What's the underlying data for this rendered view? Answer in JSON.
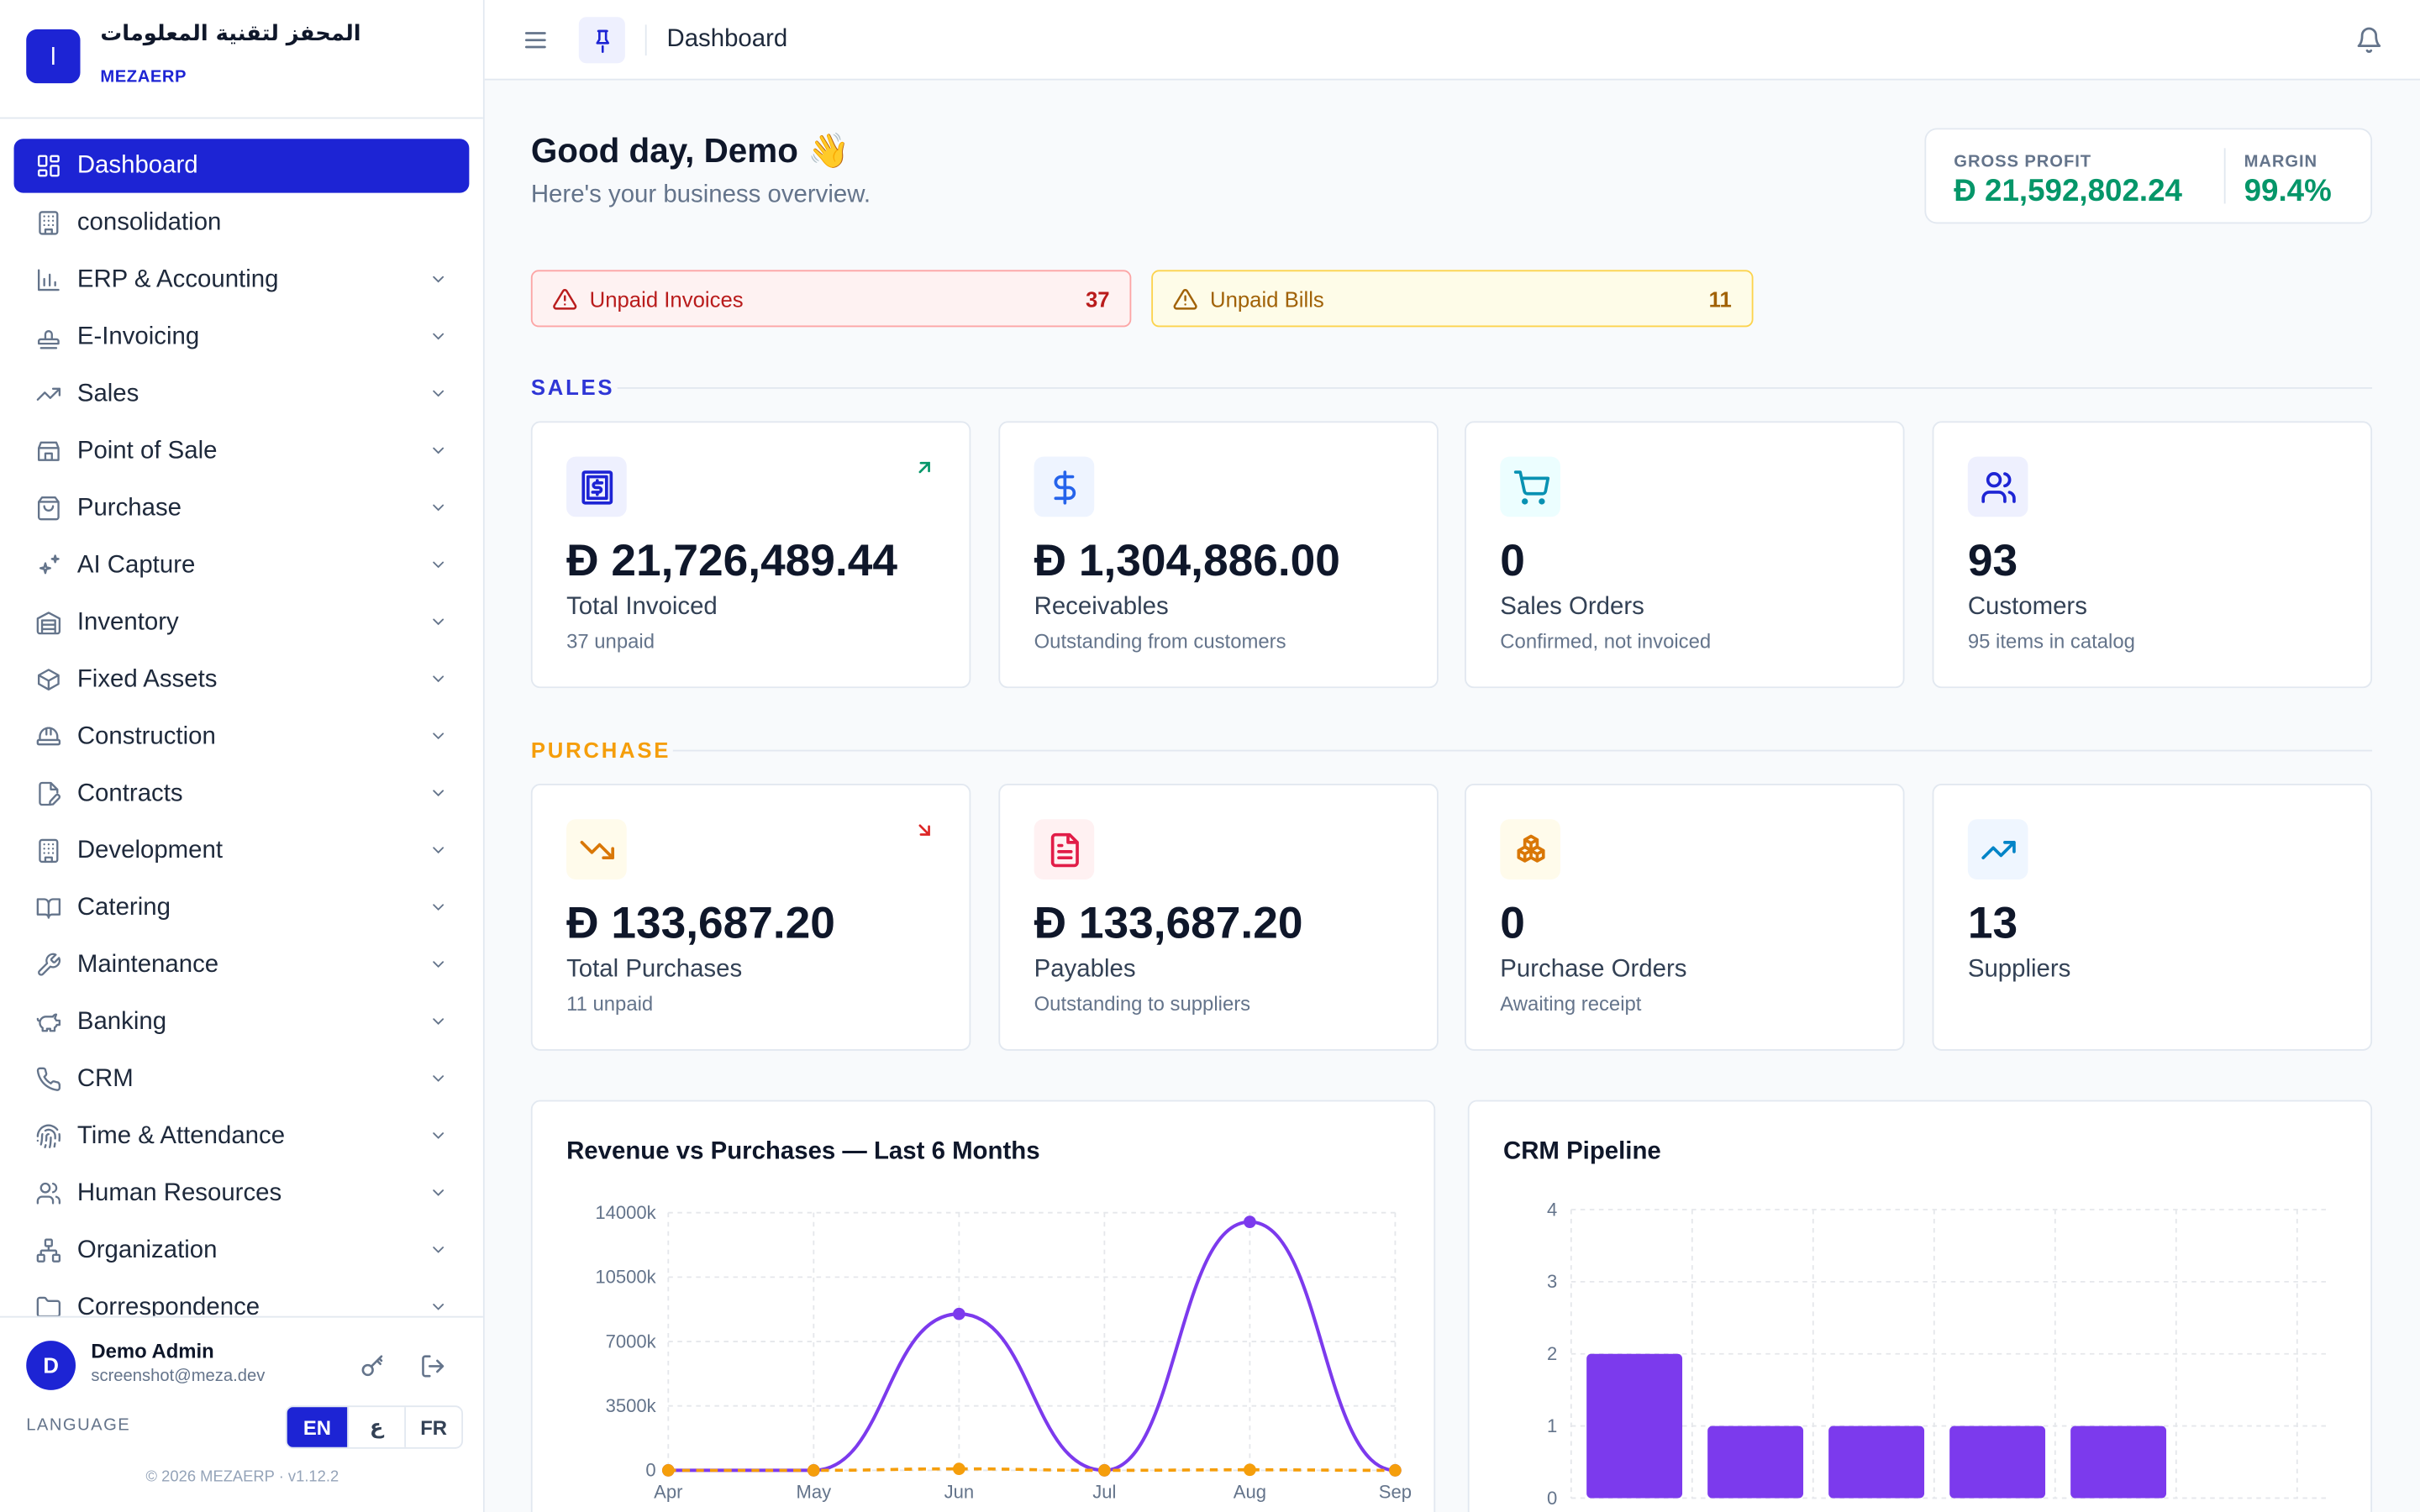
{
  "brand": {
    "logo_letter": "ا",
    "name_ar": "المحفز لتقنية المعلومات",
    "name_en": "MEZAERP"
  },
  "nav": [
    {
      "label": "Dashboard",
      "icon": "grid-icon",
      "active": true,
      "expandable": false
    },
    {
      "label": "consolidation",
      "icon": "building-icon",
      "active": false,
      "expandable": false
    },
    {
      "label": "ERP & Accounting",
      "icon": "bar-chart-icon",
      "active": false,
      "expandable": true
    },
    {
      "label": "E-Invoicing",
      "icon": "stamp-icon",
      "active": false,
      "expandable": true
    },
    {
      "label": "Sales",
      "icon": "trending-up-icon",
      "active": false,
      "expandable": true
    },
    {
      "label": "Point of Sale",
      "icon": "store-icon",
      "active": false,
      "expandable": true
    },
    {
      "label": "Purchase",
      "icon": "shopping-bag-icon",
      "active": false,
      "expandable": true
    },
    {
      "label": "AI Capture",
      "icon": "sparkles-icon",
      "active": false,
      "expandable": true
    },
    {
      "label": "Inventory",
      "icon": "warehouse-icon",
      "active": false,
      "expandable": true
    },
    {
      "label": "Fixed Assets",
      "icon": "box-icon",
      "active": false,
      "expandable": true
    },
    {
      "label": "Construction",
      "icon": "hard-hat-icon",
      "active": false,
      "expandable": true
    },
    {
      "label": "Contracts",
      "icon": "file-pen-icon",
      "active": false,
      "expandable": true
    },
    {
      "label": "Development",
      "icon": "building-icon",
      "active": false,
      "expandable": true
    },
    {
      "label": "Catering",
      "icon": "book-open-icon",
      "active": false,
      "expandable": true
    },
    {
      "label": "Maintenance",
      "icon": "wrench-icon",
      "active": false,
      "expandable": true
    },
    {
      "label": "Banking",
      "icon": "piggy-bank-icon",
      "active": false,
      "expandable": true
    },
    {
      "label": "CRM",
      "icon": "phone-icon",
      "active": false,
      "expandable": true
    },
    {
      "label": "Time & Attendance",
      "icon": "fingerprint-icon",
      "active": false,
      "expandable": true
    },
    {
      "label": "Human Resources",
      "icon": "users-icon",
      "active": false,
      "expandable": true
    },
    {
      "label": "Organization",
      "icon": "network-icon",
      "active": false,
      "expandable": true
    },
    {
      "label": "Correspondence",
      "icon": "folder-icon",
      "active": false,
      "expandable": true
    }
  ],
  "user": {
    "initial": "D",
    "name": "Demo Admin",
    "email": "screenshot@meza.dev"
  },
  "language": {
    "label": "LANGUAGE",
    "options": [
      "EN",
      "ع",
      "FR"
    ],
    "selected": "EN"
  },
  "footer": "© 2026 MEZAERP · v1.12.2",
  "topbar": {
    "title": "Dashboard"
  },
  "greeting": {
    "title": "Good day, Demo 👋",
    "subtitle": "Here's your business overview."
  },
  "gross_profit": {
    "label": "GROSS PROFIT",
    "value": "Ð 21,592,802.24",
    "margin_label": "MARGIN",
    "margin_value": "99.4%"
  },
  "alerts": [
    {
      "label": "Unpaid Invoices",
      "count": "37",
      "tone": "red"
    },
    {
      "label": "Unpaid Bills",
      "count": "11",
      "tone": "yellow"
    }
  ],
  "sales": {
    "title": "SALES",
    "cards": [
      {
        "value": "Ð 21,726,489.44",
        "label": "Total Invoiced",
        "sub": "37 unpaid",
        "icon": "receipt-icon",
        "trend": "up"
      },
      {
        "value": "Ð 1,304,886.00",
        "label": "Receivables",
        "sub": "Outstanding from customers",
        "icon": "dollar-icon",
        "trend": ""
      },
      {
        "value": "0",
        "label": "Sales Orders",
        "sub": "Confirmed, not invoiced",
        "icon": "cart-icon",
        "trend": ""
      },
      {
        "value": "93",
        "label": "Customers",
        "sub": "95 items in catalog",
        "icon": "users-icon",
        "trend": ""
      }
    ]
  },
  "purchase": {
    "title": "PURCHASE",
    "cards": [
      {
        "value": "Ð 133,687.20",
        "label": "Total Purchases",
        "sub": "11 unpaid",
        "icon": "trending-down-icon",
        "trend": "down"
      },
      {
        "value": "Ð 133,687.20",
        "label": "Payables",
        "sub": "Outstanding to suppliers",
        "icon": "file-text-icon",
        "trend": ""
      },
      {
        "value": "0",
        "label": "Purchase Orders",
        "sub": "Awaiting receipt",
        "icon": "boxes-icon",
        "trend": ""
      },
      {
        "value": "13",
        "label": "Suppliers",
        "sub": "",
        "icon": "trending-up-icon",
        "trend": ""
      }
    ]
  },
  "colors": {
    "primary": "#1d24d4",
    "success": "#059669",
    "sales": "#2f36d6",
    "purchase": "#f59e0b",
    "revenue_line": "#7c3aed",
    "purchase_line": "#f59e0b",
    "bar": "#7c3aed"
  },
  "chart_data": [
    {
      "type": "line",
      "title": "Revenue vs Purchases — Last 6 Months",
      "x": [
        "Apr",
        "May",
        "Jun",
        "Jul",
        "Aug",
        "Sep"
      ],
      "yticks": [
        "0",
        "3500k",
        "7000k",
        "10500k",
        "14000k"
      ],
      "ylim": [
        0,
        14000
      ],
      "series": [
        {
          "values": [
            0,
            0,
            8500,
            0,
            13500,
            0
          ]
        },
        {
          "values": [
            0,
            0,
            80,
            0,
            30,
            0
          ]
        }
      ],
      "grid": true
    },
    {
      "type": "bar",
      "title": "CRM Pipeline",
      "categories": [
        "",
        "",
        "",
        "",
        ""
      ],
      "values": [
        2,
        1,
        1,
        1,
        1
      ],
      "yticks": [
        "0",
        "1",
        "2",
        "3",
        "4"
      ],
      "ylim": [
        0,
        4
      ],
      "grid": true
    }
  ]
}
